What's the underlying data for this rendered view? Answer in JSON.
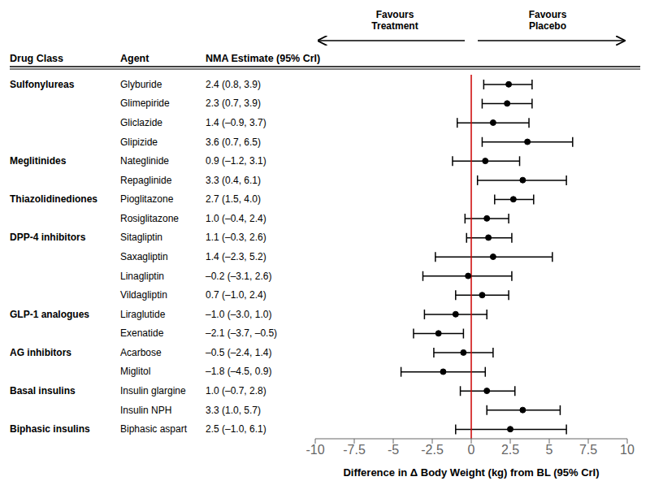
{
  "chart_data": {
    "type": "forest",
    "column_headers": [
      "Drug Class",
      "Agent",
      "NMA Estimate (95% CrI)"
    ],
    "groups": [
      "Sulfonylureas",
      null,
      null,
      null,
      "Meglitinides",
      null,
      "Thiazolidinediones",
      null,
      "DPP-4 inhibitors",
      null,
      null,
      null,
      "GLP-1 analogues",
      null,
      "AG inhibitors",
      null,
      "Basal insulins",
      null,
      "Biphasic insulins"
    ],
    "categories": [
      "Glyburide",
      "Glimepiride",
      "Gliclazide",
      "Glipizide",
      "Nateglinide",
      "Repaglinide",
      "Pioglitazone",
      "Rosiglitazone",
      "Sitagliptin",
      "Saxagliptin",
      "Linagliptin",
      "Vildagliptin",
      "Liraglutide",
      "Exenatide",
      "Acarbose",
      "Miglitol",
      "Insulin glargine",
      "Insulin NPH",
      "Biphasic aspart"
    ],
    "values": [
      2.4,
      2.3,
      1.4,
      3.6,
      0.9,
      3.3,
      2.7,
      1.0,
      1.1,
      1.4,
      -0.2,
      0.7,
      -1.0,
      -2.1,
      -0.5,
      -1.8,
      1.0,
      3.3,
      2.5
    ],
    "ci_lo": [
      0.8,
      0.7,
      -0.9,
      0.7,
      -1.2,
      0.4,
      1.5,
      -0.4,
      -0.3,
      -2.3,
      -3.1,
      -1.0,
      -3.0,
      -3.7,
      -2.4,
      -4.5,
      -0.7,
      1.0,
      -1.0
    ],
    "ci_hi": [
      3.9,
      3.9,
      3.7,
      6.5,
      3.1,
      6.1,
      4.0,
      2.4,
      2.6,
      5.2,
      2.6,
      2.4,
      1.0,
      -0.5,
      1.4,
      0.9,
      2.8,
      5.7,
      6.1
    ],
    "value_labels": [
      "2.4 (0.8, 3.9)",
      "2.3 (0.7, 3.9)",
      "1.4 (–0.9, 3.7)",
      "3.6 (0.7, 6.5)",
      "0.9 (–1.2, 3.1)",
      "3.3 (0.4, 6.1)",
      "2.7 (1.5, 4.0)",
      "1.0 (–0.4, 2.4)",
      "1.1 (–0.3, 2.6)",
      "1.4 (–2.3, 5.2)",
      "–0.2 (–3.1, 2.6)",
      "0.7 (–1.0, 2.4)",
      "–1.0 (–3.0, 1.0)",
      "–2.1 (–3.7, –0.5)",
      "–0.5 (–2.4, 1.4)",
      "–1.8 (–4.5, 0.9)",
      "1.0 (–0.7, 2.8)",
      "3.3 (1.0, 5.7)",
      "2.5 (–1.0, 6.1)"
    ],
    "xlabel": "Difference in Δ Body Weight (kg) from BL (95% CrI)",
    "xlim": [
      -10,
      10
    ],
    "xticks": [
      -10,
      -7.5,
      -5,
      -2.5,
      0,
      2.5,
      5,
      7.5,
      10
    ],
    "annotations": [
      "Favours\nTreatment",
      "Favours\nPlacebo"
    ],
    "color": "black",
    "reference_line": {
      "value": 0,
      "color": "#cc0000"
    },
    "grid": false
  }
}
